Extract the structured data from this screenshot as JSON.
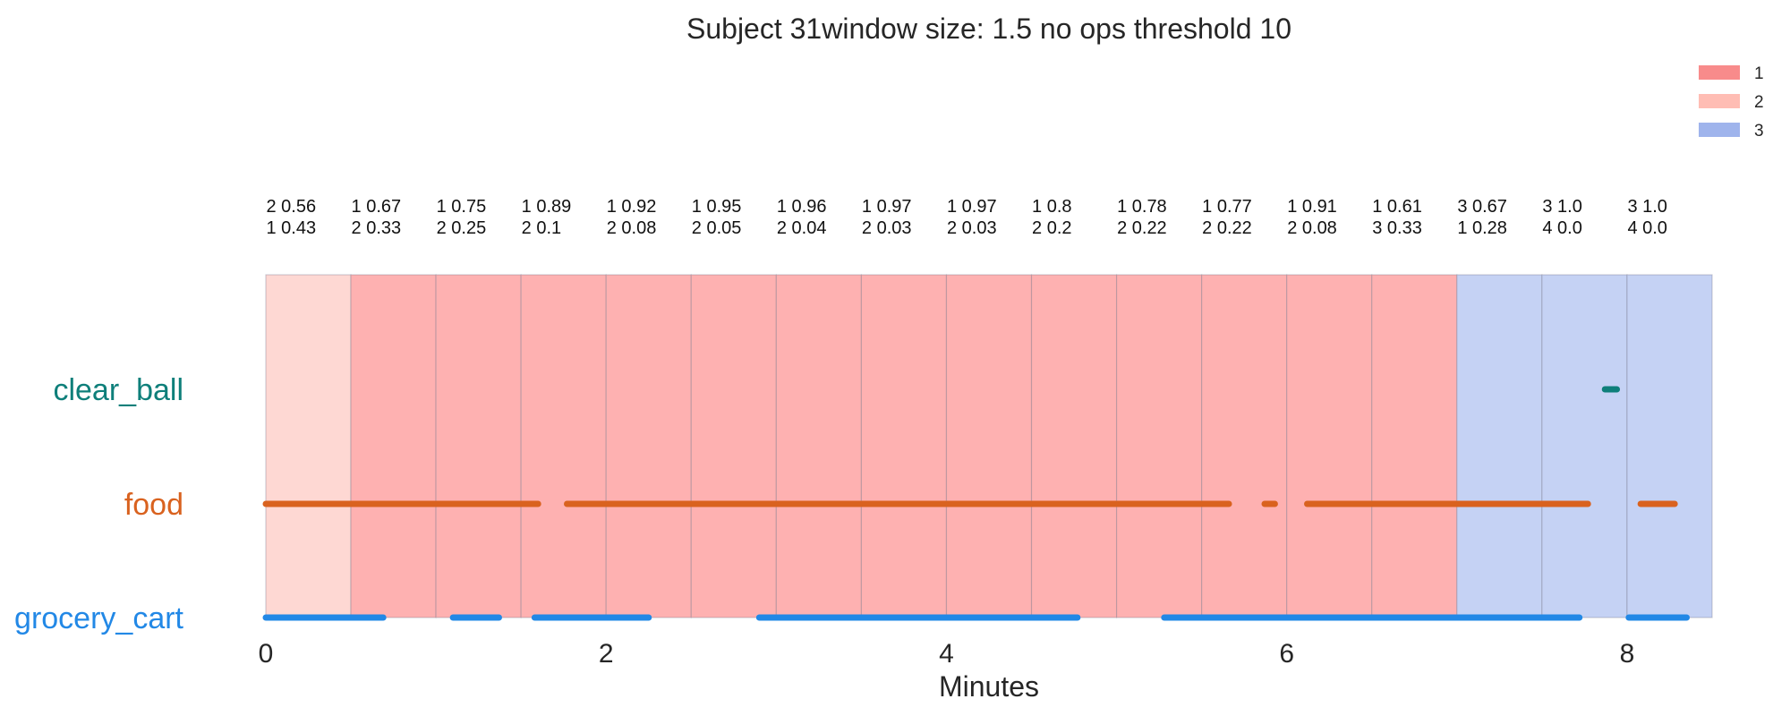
{
  "chart_data": {
    "type": "timeline",
    "title": "Subject 31window size: 1.5 no ops threshold 10",
    "xlabel": "Minutes",
    "xlim": [
      0,
      8.5
    ],
    "xticks": [
      0,
      2,
      4,
      6,
      8
    ],
    "legend": {
      "placement": "top-right",
      "entries": [
        {
          "label": "1",
          "color": "#f88b8b"
        },
        {
          "label": "2",
          "color": "#ffbdb4"
        },
        {
          "label": "3",
          "color": "#9fb4ec"
        }
      ]
    },
    "window_colors": {
      "1": "#feb1b1",
      "2": "#fed8d3",
      "3": "#c5d2f4"
    },
    "windows": [
      {
        "start": 0.0,
        "end": 0.5,
        "label": "2",
        "line1": "2 0.56",
        "line2": "1 0.43"
      },
      {
        "start": 0.5,
        "end": 1.0,
        "label": "1",
        "line1": "1 0.67",
        "line2": "2 0.33"
      },
      {
        "start": 1.0,
        "end": 1.5,
        "label": "1",
        "line1": "1 0.75",
        "line2": "2 0.25"
      },
      {
        "start": 1.5,
        "end": 2.0,
        "label": "1",
        "line1": "1 0.89",
        "line2": "2 0.1"
      },
      {
        "start": 2.0,
        "end": 2.5,
        "label": "1",
        "line1": "1 0.92",
        "line2": "2 0.08"
      },
      {
        "start": 2.5,
        "end": 3.0,
        "label": "1",
        "line1": "1 0.95",
        "line2": "2 0.05"
      },
      {
        "start": 3.0,
        "end": 3.5,
        "label": "1",
        "line1": "1 0.96",
        "line2": "2 0.04"
      },
      {
        "start": 3.5,
        "end": 4.0,
        "label": "1",
        "line1": "1 0.97",
        "line2": "2 0.03"
      },
      {
        "start": 4.0,
        "end": 4.5,
        "label": "1",
        "line1": "1 0.97",
        "line2": "2 0.03"
      },
      {
        "start": 4.5,
        "end": 5.0,
        "label": "1",
        "line1": "1 0.8",
        "line2": "2 0.2"
      },
      {
        "start": 5.0,
        "end": 5.5,
        "label": "1",
        "line1": "1 0.78",
        "line2": "2 0.22"
      },
      {
        "start": 5.5,
        "end": 6.0,
        "label": "1",
        "line1": "1 0.77",
        "line2": "2 0.22"
      },
      {
        "start": 6.0,
        "end": 6.5,
        "label": "1",
        "line1": "1 0.91",
        "line2": "2 0.08"
      },
      {
        "start": 6.5,
        "end": 7.0,
        "label": "1",
        "line1": "1 0.61",
        "line2": "3 0.33"
      },
      {
        "start": 7.0,
        "end": 7.5,
        "label": "3",
        "line1": "3 0.67",
        "line2": "1 0.28"
      },
      {
        "start": 7.5,
        "end": 8.0,
        "label": "3",
        "line1": "3 1.0",
        "line2": "4 0.0"
      },
      {
        "start": 8.0,
        "end": 8.5,
        "label": "3",
        "line1": "3 1.0",
        "line2": "4 0.0"
      }
    ],
    "series": [
      {
        "name": "clear_ball",
        "color": "#0e7f7a",
        "segments": [
          [
            7.87,
            7.94
          ]
        ]
      },
      {
        "name": "food",
        "color": "#d9621f",
        "segments": [
          [
            0.0,
            1.6
          ],
          [
            1.77,
            5.66
          ],
          [
            5.87,
            5.93
          ],
          [
            6.12,
            7.77
          ],
          [
            8.08,
            8.28
          ]
        ]
      },
      {
        "name": "grocery_cart",
        "color": "#2288e6",
        "segments": [
          [
            0.0,
            0.69
          ],
          [
            1.1,
            1.37
          ],
          [
            1.58,
            2.25
          ],
          [
            2.9,
            4.77
          ],
          [
            5.28,
            7.72
          ],
          [
            8.01,
            8.35
          ]
        ]
      }
    ]
  }
}
